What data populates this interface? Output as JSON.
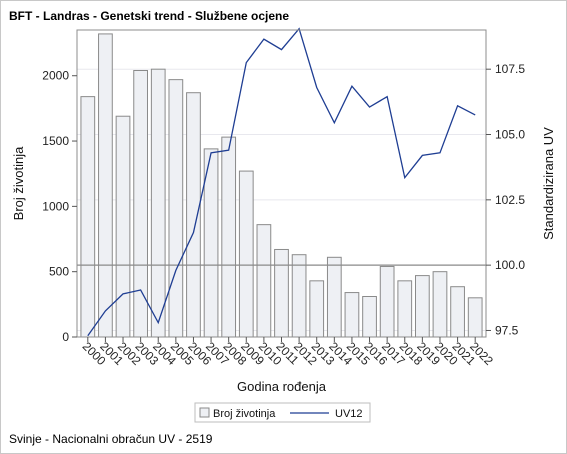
{
  "title": "BFT - Landras - Genetski trend - Službene ocjene",
  "footnote": "Svinje - Nacionalni obračun UV - 2519",
  "chart_data": {
    "type": "bar",
    "categories": [
      "2000",
      "2001",
      "2002",
      "2003",
      "2004",
      "2005",
      "2006",
      "2007",
      "2008",
      "2009",
      "2010",
      "2011",
      "2012",
      "2013",
      "2014",
      "2015",
      "2016",
      "2017",
      "2018",
      "2019",
      "2020",
      "2021",
      "2022"
    ],
    "xlabel": "Godina rođenja",
    "ylabel": "Broj životinja",
    "y2label": "Standardizirana UV",
    "ylim": [
      0,
      2350
    ],
    "y2lim": [
      97.25,
      109.0
    ],
    "yticks": [
      0,
      500,
      1000,
      1500,
      2000
    ],
    "yticklabels": [
      "0",
      "500",
      "1000",
      "1500",
      "2000"
    ],
    "y2ticks": [
      97.5,
      100.0,
      102.5,
      105.0,
      107.5
    ],
    "y2ticklabels": [
      "97.5",
      "100.0",
      "102.5",
      "105.0",
      "107.5"
    ],
    "reference_line_y2": 100.0,
    "grid": true,
    "legend_position": "bottom",
    "series": [
      {
        "name": "Broj životinja",
        "type": "bar",
        "axis": "left",
        "color": "#eef0f4",
        "stroke": "#8a8a8a",
        "values": [
          1840,
          2320,
          1690,
          2040,
          2050,
          1970,
          1870,
          1440,
          1530,
          1270,
          860,
          670,
          630,
          430,
          610,
          340,
          310,
          540,
          430,
          470,
          500,
          385,
          300
        ]
      },
      {
        "name": "UV12",
        "type": "line",
        "axis": "right",
        "color": "#1f3e93",
        "values": [
          97.3,
          98.25,
          98.9,
          99.05,
          97.8,
          99.8,
          101.25,
          104.3,
          104.4,
          107.75,
          108.65,
          108.25,
          109.05,
          106.8,
          105.45,
          106.85,
          106.05,
          106.45,
          103.35,
          104.2,
          104.3,
          106.1,
          105.75
        ]
      }
    ]
  }
}
